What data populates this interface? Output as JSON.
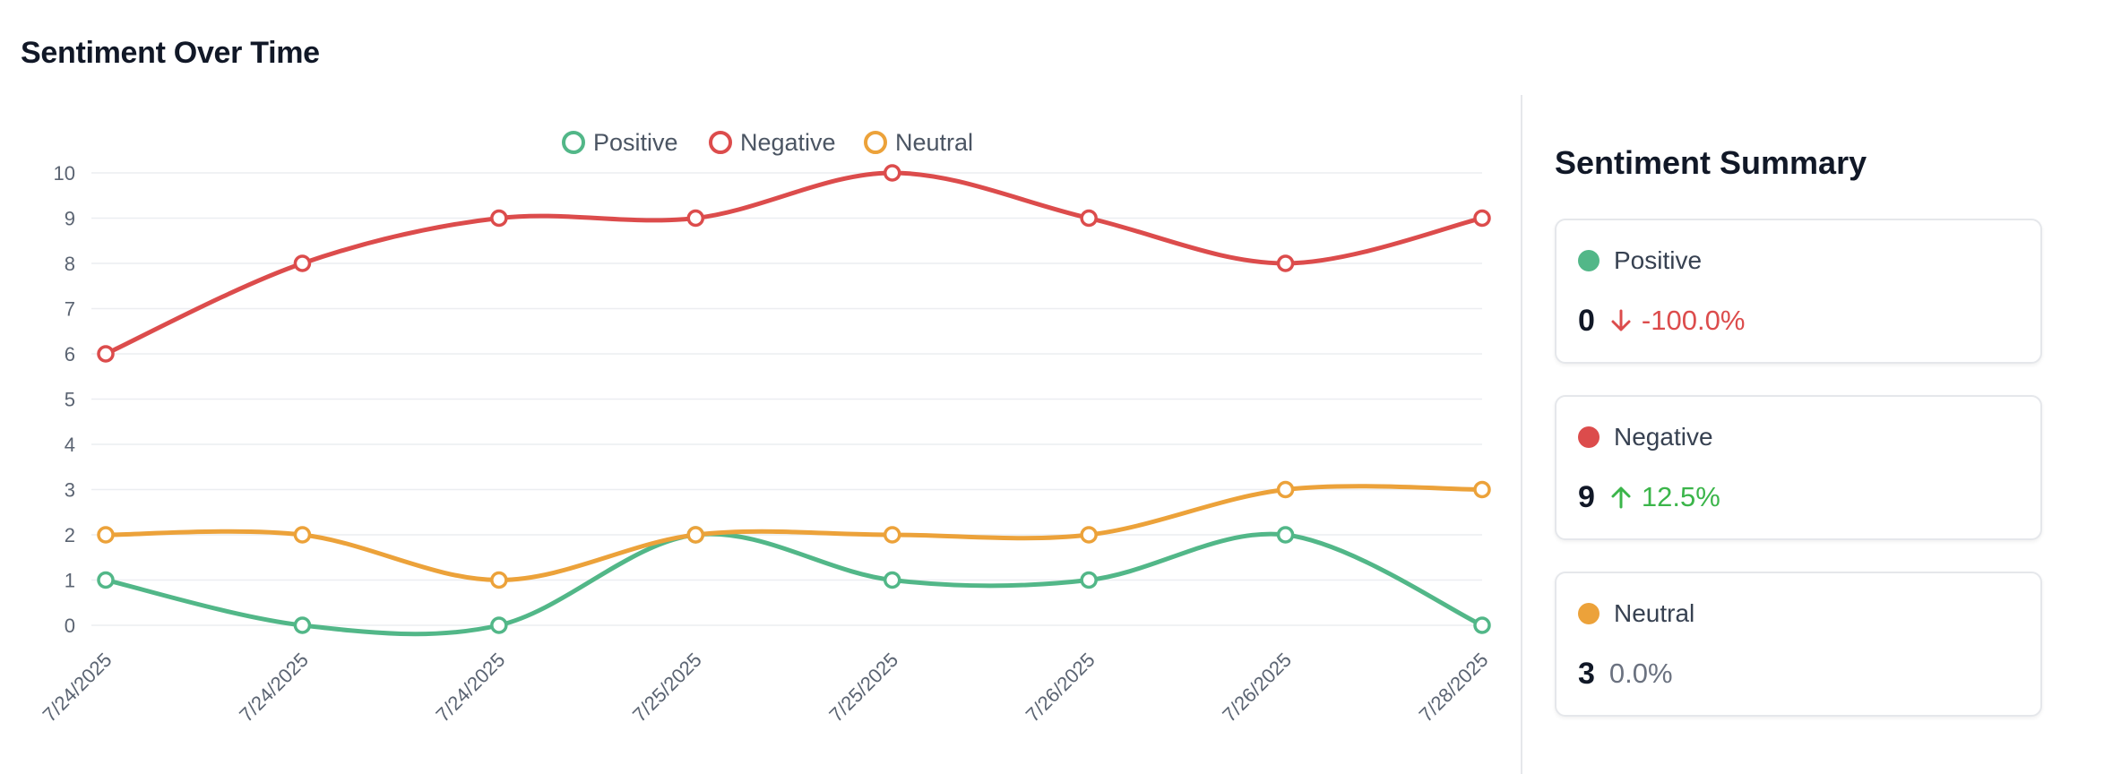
{
  "title": "Sentiment Over Time",
  "chart_data": {
    "type": "line",
    "categories": [
      "7/24/2025",
      "7/24/2025",
      "7/24/2025",
      "7/25/2025",
      "7/25/2025",
      "7/26/2025",
      "7/26/2025",
      "7/28/2025"
    ],
    "series": [
      {
        "name": "Positive",
        "color": "#52b788",
        "values": [
          1,
          0,
          0,
          2,
          1,
          1,
          2,
          0
        ]
      },
      {
        "name": "Negative",
        "color": "#dc4c4c",
        "values": [
          6,
          8,
          9,
          9,
          10,
          9,
          8,
          9
        ]
      },
      {
        "name": "Neutral",
        "color": "#eca23a",
        "values": [
          2,
          2,
          1,
          2,
          2,
          2,
          3,
          3
        ]
      }
    ],
    "yticks": [
      "0",
      "1",
      "2",
      "3",
      "4",
      "5",
      "6",
      "7",
      "8",
      "9",
      "10"
    ],
    "ylim": [
      0,
      10
    ],
    "grid": true,
    "legend": "top-center",
    "smooth": true
  },
  "summary": {
    "title": "Sentiment Summary",
    "cards": [
      {
        "label": "Positive",
        "value": "0",
        "change": "-100.0%",
        "direction": "down",
        "dot_color": "#52b788",
        "change_color": "#dc4c4c"
      },
      {
        "label": "Negative",
        "value": "9",
        "change": "12.5%",
        "direction": "up",
        "dot_color": "#dc4c4c",
        "change_color": "#3bb54a"
      },
      {
        "label": "Neutral",
        "value": "3",
        "change": "0.0%",
        "direction": "none",
        "dot_color": "#eca23a",
        "change_color": "#6b7280"
      }
    ]
  }
}
